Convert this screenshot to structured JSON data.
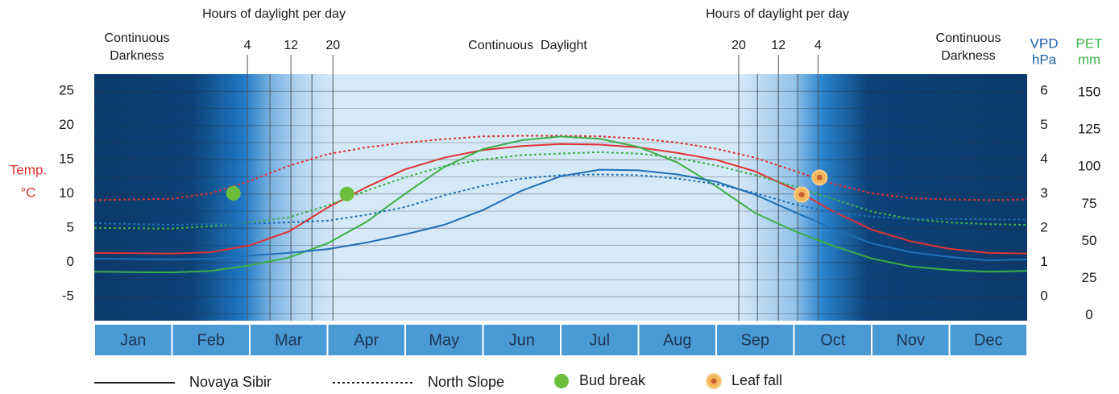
{
  "chart_data": {
    "type": "line",
    "daylight_headers": [
      "Hours of daylight per day",
      "Hours of daylight per day"
    ],
    "dark_left": [
      "Continuous",
      "Darkness"
    ],
    "daylight_label": "Continuous  Daylight",
    "dark_right": [
      "Continuous",
      "Darkness"
    ],
    "y_label": [
      "Temp.",
      "°C"
    ],
    "y2_label": [
      "VPD",
      "hPa"
    ],
    "y3_label": [
      "PET",
      "mm"
    ],
    "months": [
      "Jan",
      "Feb",
      "Mar",
      "Apr",
      "May",
      "Jun",
      "Jul",
      "Aug",
      "Sep",
      "Oct",
      "Nov",
      "Dec"
    ],
    "xlim": [
      0,
      12
    ],
    "daylight_x": [
      1.97,
      2.26,
      2.53,
      2.8,
      3.07,
      8.29,
      8.53,
      8.8,
      9.05,
      9.31
    ],
    "daylight_labels": [
      "4",
      null,
      "12",
      null,
      "20",
      "20",
      null,
      "12",
      null,
      "4"
    ],
    "ylim": [
      -8.5,
      27.5
    ],
    "yticks": [
      -5,
      0,
      5,
      10,
      15,
      20,
      25
    ],
    "yminor": [
      -7.5,
      -2.5,
      2.5,
      7.5,
      12.5,
      17.5,
      22.5
    ],
    "y2lim": [
      -0.7,
      6.5
    ],
    "y2ticks": [
      0,
      1,
      2,
      3,
      4,
      5,
      6
    ],
    "y3lim": [
      -3.5,
      162.5
    ],
    "y3ticks": [
      0,
      25,
      50,
      75,
      100,
      125,
      150
    ],
    "grid": true,
    "x": [
      0,
      0.5,
      1,
      1.5,
      2,
      2.5,
      3,
      3.5,
      4,
      4.5,
      5,
      5.5,
      6,
      6.5,
      7,
      7.5,
      8,
      8.5,
      9,
      9.5,
      10,
      10.5,
      11,
      11.5,
      12
    ],
    "sites": [
      {
        "name": "Novaya Sibir",
        "dash": false
      },
      {
        "name": "North Slope",
        "dash": true
      }
    ],
    "series": [
      {
        "color": "#e03131",
        "site": 0,
        "axis": "y",
        "values": [
          1.4,
          1.35,
          1.3,
          1.5,
          2.5,
          4.5,
          8,
          11,
          13.6,
          15.3,
          16.4,
          17,
          17.3,
          17.2,
          16.8,
          16,
          15,
          13.3,
          10.7,
          7.5,
          4.8,
          3.1,
          2,
          1.4,
          1.3
        ]
      },
      {
        "color": "#e03131",
        "site": 1,
        "axis": "y",
        "values": [
          9.1,
          9.2,
          9.3,
          10.1,
          11.9,
          14.1,
          15.8,
          16.8,
          17.5,
          18,
          18.4,
          18.5,
          18.5,
          18.4,
          18.1,
          17.5,
          16.6,
          15.3,
          13.4,
          11.5,
          10.1,
          9.4,
          9.2,
          9.1,
          9.2
        ]
      },
      {
        "color": "#3dae45",
        "site": 0,
        "axis": "y3",
        "values": [
          29.5,
          29.2,
          29,
          30,
          33.7,
          39,
          48.5,
          63,
          82,
          100,
          112,
          118,
          120.5,
          119,
          113.5,
          103,
          87,
          69,
          57,
          47,
          38.4,
          33,
          30.7,
          29.5,
          30
        ]
      },
      {
        "color": "#3dae45",
        "site": 1,
        "axis": "y3",
        "values": [
          59,
          58.7,
          58.5,
          60,
          62.6,
          66,
          74,
          84,
          93,
          100.5,
          105,
          108,
          109,
          110,
          109,
          106,
          101,
          94.5,
          87,
          78.6,
          70,
          65,
          62.6,
          61.5,
          61
        ]
      },
      {
        "color": "#1f6fb5",
        "site": 0,
        "axis": "y2",
        "values": [
          1.11,
          1.1,
          1.09,
          1.11,
          1.2,
          1.28,
          1.39,
          1.58,
          1.82,
          2.1,
          2.53,
          3.1,
          3.52,
          3.71,
          3.69,
          3.57,
          3.36,
          2.98,
          2.48,
          1.99,
          1.56,
          1.3,
          1.16,
          1.06,
          1.09
        ]
      },
      {
        "color": "#1f6fb5",
        "site": 1,
        "axis": "y2",
        "values": [
          2.15,
          2.12,
          2.1,
          2.12,
          2.13,
          2.17,
          2.22,
          2.39,
          2.62,
          2.96,
          3.24,
          3.45,
          3.55,
          3.57,
          3.55,
          3.45,
          3.29,
          3.03,
          2.7,
          2.46,
          2.34,
          2.27,
          2.27,
          2.26,
          2.25
        ]
      }
    ],
    "events": [
      {
        "name": "Bud break",
        "style": "bud",
        "x": [
          1.79,
          3.25
        ],
        "values": [
          10.1,
          10
        ]
      },
      {
        "name": "Leaf fall",
        "style": "leaf",
        "x": [
          9.1,
          9.33
        ],
        "values": [
          9.9,
          12.4
        ]
      }
    ],
    "y_color": "#d9312f",
    "y2_color": "#1f5fa6",
    "y3_color": "#3db54a"
  }
}
